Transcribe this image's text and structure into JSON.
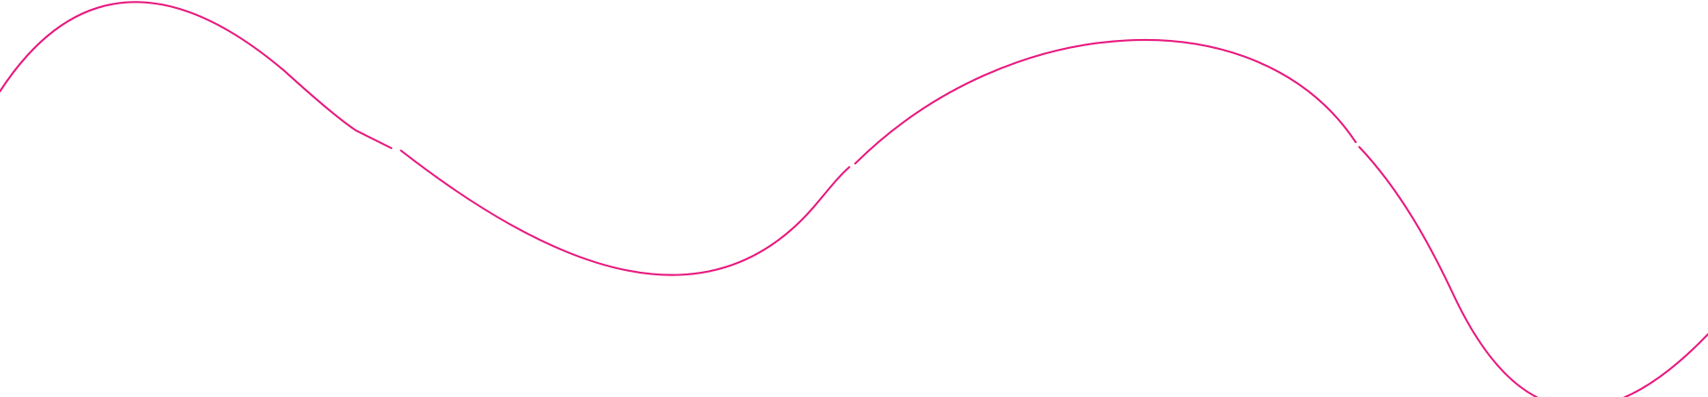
{
  "decoration": {
    "type": "wavy-line",
    "stroke_color": "#e8197f",
    "background_color": "#ffffff"
  }
}
